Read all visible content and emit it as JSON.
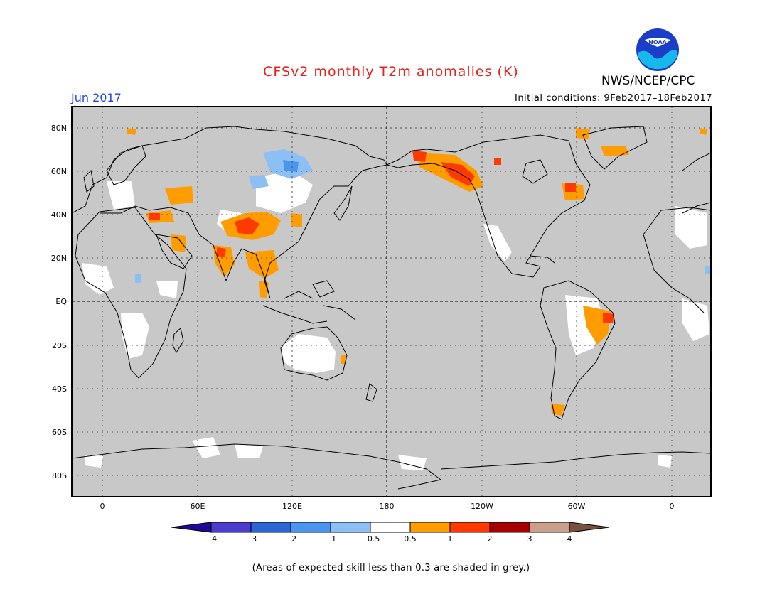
{
  "header": {
    "title": "CFSv2 monthly T2m anomalies (K)",
    "month": "Jun 2017",
    "agency": "NWS/NCEP/CPC",
    "initial_conditions": "Initial conditions: 9Feb2017–18Feb2017",
    "logo_text": "NOAA"
  },
  "map": {
    "lat_labels": [
      "80N",
      "60N",
      "40N",
      "20N",
      "EQ",
      "20S",
      "40S",
      "60S",
      "80S"
    ],
    "lon_labels": [
      "0",
      "60E",
      "120E",
      "180",
      "120W",
      "60W",
      "0"
    ],
    "background_color": "#c8c8c8"
  },
  "legend": {
    "tick_labels": [
      "−4",
      "−3",
      "−2",
      "−1",
      "−0.5",
      "0.5",
      "1",
      "2",
      "3",
      "4"
    ],
    "colors": [
      "#1e0a96",
      "#4a3ccc",
      "#2a66d6",
      "#4a96ee",
      "#8cc0f4",
      "#ffffff",
      "#ff9c00",
      "#ff3a00",
      "#a80000",
      "#c8a08c",
      "#785040"
    ]
  },
  "footnote": "(Areas of expected skill less than 0.3 are shaded in grey.)"
}
